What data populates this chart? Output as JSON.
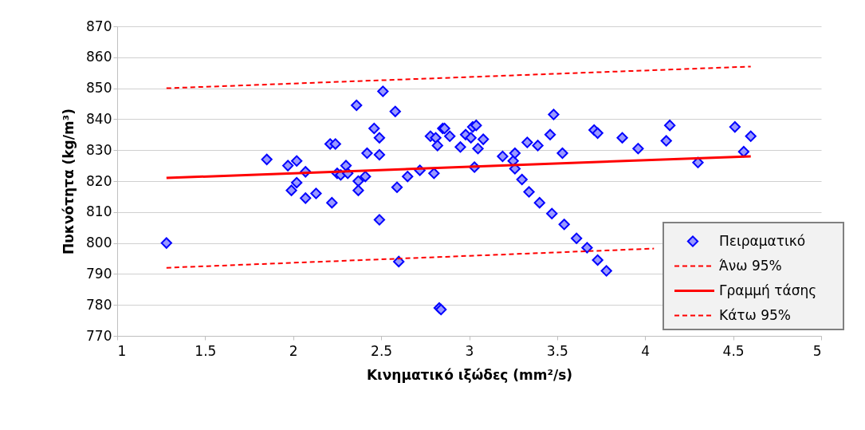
{
  "chart_data": {
    "type": "scatter",
    "xlabel": "Κινηματικό ιξώδες (mm²/s)",
    "ylabel": "Πυκνότητα (kg/m³)",
    "xlim": [
      1,
      5
    ],
    "xticks": [
      1,
      1.5,
      2,
      2.5,
      3,
      3.5,
      4,
      4.5,
      5
    ],
    "ylim": [
      770,
      870
    ],
    "yticks": [
      770,
      780,
      790,
      800,
      810,
      820,
      830,
      840,
      850,
      860,
      870
    ],
    "grid": "y",
    "legend": "bottom right",
    "series": [
      {
        "name": "Πειραματικό",
        "type": "scatter",
        "marker": "diamond",
        "color": "#9999ff",
        "x": [
          1.28,
          1.85,
          1.97,
          1.99,
          2.02,
          2.02,
          2.07,
          2.07,
          2.13,
          2.21,
          2.22,
          2.24,
          2.25,
          2.27,
          2.3,
          2.31,
          2.36,
          2.37,
          2.37,
          2.41,
          2.42,
          2.46,
          2.49,
          2.49,
          2.49,
          2.51,
          2.58,
          2.59,
          2.6,
          2.65,
          2.72,
          2.78,
          2.8,
          2.81,
          2.82,
          2.83,
          2.84,
          2.85,
          2.86,
          2.89,
          2.95,
          2.98,
          3.01,
          3.02,
          3.03,
          3.04,
          3.05,
          3.08,
          3.19,
          3.25,
          3.26,
          3.26,
          3.3,
          3.33,
          3.34,
          3.39,
          3.4,
          3.46,
          3.47,
          3.48,
          3.53,
          3.54,
          3.61,
          3.67,
          3.71,
          3.73,
          3.73,
          3.78,
          3.87,
          3.96,
          4.12,
          4.14,
          4.3,
          4.51,
          4.56,
          4.6
        ],
        "values": [
          800,
          827,
          825,
          817,
          826.5,
          819.5,
          823,
          814.5,
          816,
          832,
          813,
          832,
          822.5,
          822,
          825,
          822.5,
          844.5,
          820,
          817,
          821.5,
          829,
          837,
          834,
          828.5,
          807.5,
          849,
          842.5,
          818,
          794,
          821.5,
          823.5,
          834.5,
          822.5,
          834,
          831.5,
          779,
          778.5,
          837,
          837,
          834.5,
          831,
          835,
          834,
          837.5,
          824.5,
          838,
          830.5,
          833.5,
          828,
          826.5,
          829,
          824,
          820.5,
          832.5,
          816.5,
          831.5,
          813,
          835,
          809.5,
          841.5,
          829,
          806,
          801.5,
          798.5,
          836.5,
          835.5,
          794.5,
          791,
          834,
          830.5,
          833,
          838,
          826,
          837.5,
          829.5,
          834.5
        ]
      },
      {
        "name": "Άνω 95%",
        "type": "line",
        "marker": "none",
        "line_style": "dashed",
        "color": "#ff0000",
        "x": [
          1.28,
          4.6
        ],
        "values": [
          850,
          857
        ]
      },
      {
        "name": "Γραμμή τάσης",
        "type": "line",
        "marker": "none",
        "line_style": "solid",
        "color": "#ff0000",
        "x": [
          1.28,
          4.6
        ],
        "values": [
          821,
          828
        ]
      },
      {
        "name": "Κάτω 95%",
        "type": "line",
        "marker": "none",
        "line_style": "dashed",
        "color": "#ff0000",
        "x": [
          1.28,
          4.05
        ],
        "values": [
          792,
          798.2
        ]
      }
    ]
  }
}
